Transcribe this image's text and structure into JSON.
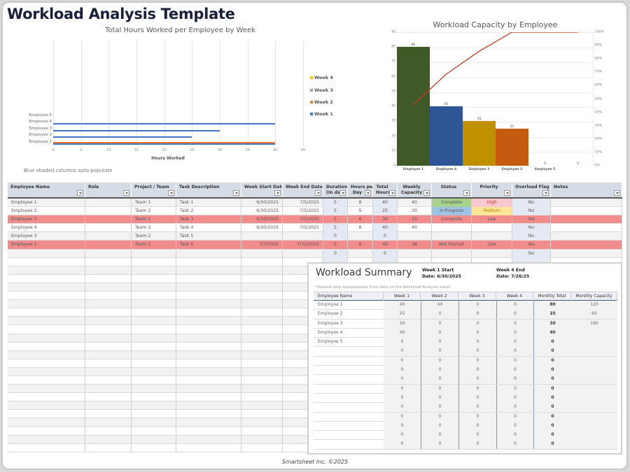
{
  "page": {
    "title": "Workload Analysis Template",
    "note": "Blue shaded columns auto-populate",
    "footer": "Smartsheet Inc. ©2025"
  },
  "colors": {
    "title": "#1a1f3a",
    "week1": "#4472c4",
    "week2": "#ed7d31",
    "week3": "#a5a5a5",
    "week4": "#ffc000",
    "overload_row": "#f28b8b",
    "status_complete": "#a9d18e",
    "status_in_progress": "#9dc3e6",
    "priority_high": "#f8c8cf",
    "priority_medium": "#ffe699",
    "shaded_column": "#e4e9f3"
  },
  "chart_data": [
    {
      "type": "bar",
      "orientation": "horizontal",
      "title": "Total Hours Worked per Employee by Week",
      "xlabel": "Hours Worked",
      "ylabel": "",
      "categories": [
        "Employee 1",
        "Employee 2",
        "Employee 3",
        "Employee 4",
        "Employee 5"
      ],
      "series": [
        {
          "name": "Week 1",
          "values": [
            40,
            25,
            30,
            40,
            0
          ]
        },
        {
          "name": "Week 2",
          "values": [
            40,
            0,
            0,
            0,
            0
          ]
        },
        {
          "name": "Week 3",
          "values": [
            0,
            0,
            0,
            0,
            0
          ]
        },
        {
          "name": "Week 4",
          "values": [
            0,
            0,
            0,
            0,
            0
          ]
        }
      ],
      "xlim": [
        0,
        45
      ],
      "xticks": [
        "0",
        "5",
        "10",
        "15",
        "20",
        "25",
        "30",
        "35",
        "40",
        "45"
      ],
      "legend": [
        "Week 4",
        "Week 3",
        "Week 2",
        "Week 1"
      ],
      "legend_position": "right",
      "grid": true
    },
    {
      "type": "bar",
      "subtype": "pareto",
      "title": "Workload Capacity by Employee",
      "categories": [
        "Employee 1",
        "Employee 4",
        "Employee 3",
        "Employee 2",
        "Employee 5",
        ""
      ],
      "series": [
        {
          "name": "Monthly Total",
          "type": "bar",
          "values": [
            80,
            40,
            30,
            25,
            0,
            0
          ],
          "colors": [
            "#3f5a27",
            "#2f5597",
            "#bf9000",
            "#c55a11",
            "#999999",
            "#999999"
          ]
        },
        {
          "name": "Cumulative %",
          "type": "line",
          "axis": "right",
          "values": [
            45.7,
            68.6,
            85.7,
            100,
            100,
            100
          ],
          "color": "#c0392b"
        }
      ],
      "ylim": [
        0,
        90
      ],
      "yticks": [
        "0",
        "10",
        "20",
        "30",
        "40",
        "50",
        "60",
        "70",
        "80",
        "90"
      ],
      "y2lim": [
        0,
        100
      ],
      "y2ticks": [
        "0%",
        "10%",
        "20%",
        "30%",
        "40%",
        "50%",
        "60%",
        "70%",
        "80%",
        "90%",
        "100%"
      ],
      "data_labels": [
        "80",
        "40",
        "30",
        "25",
        "0",
        "0"
      ],
      "grid": true
    }
  ],
  "table": {
    "headers": [
      {
        "label": "Employee Name"
      },
      {
        "label": "Role"
      },
      {
        "label": "Project / Team"
      },
      {
        "label": "Task Description"
      },
      {
        "label": "Week Start Date"
      },
      {
        "label": "Week End Date"
      },
      {
        "label": "Duration (In days)"
      },
      {
        "label": "Hours per Day"
      },
      {
        "label": "Total Hours"
      },
      {
        "label": "Weekly Capacity"
      },
      {
        "label": "Status"
      },
      {
        "label": "Priority"
      },
      {
        "label": "Overload Flag"
      },
      {
        "label": "Notes"
      }
    ],
    "header_display": [
      "Employee Name",
      "Role",
      "Project / Team",
      "Task Description",
      "Week Start Date",
      "Week End Date",
      "Duration\n(In days",
      "Hours per\nDay",
      "Total\nHours",
      "Weekly\nCapacity",
      "Status",
      "Priority",
      "Overload Flag",
      "Notes"
    ],
    "rows": [
      {
        "employee": "Employee 1",
        "role": "",
        "team": "Team 1",
        "task": "Task 1",
        "start": "6/30/2025",
        "end": "7/5/2025",
        "duration": "5",
        "hours_per_day": "8",
        "total": "40",
        "capacity": "40",
        "status": "Complete",
        "priority": "High",
        "overload": "No",
        "notes": ""
      },
      {
        "employee": "Employee 2",
        "role": "",
        "team": "Team 2",
        "task": "Task 2",
        "start": "6/30/2025",
        "end": "7/5/2025",
        "duration": "5",
        "hours_per_day": "5",
        "total": "25",
        "capacity": "30",
        "status": "In Progress",
        "priority": "Medium",
        "overload": "No",
        "notes": ""
      },
      {
        "employee": "Employee 3",
        "role": "",
        "team": "Team 1",
        "task": "Task 3",
        "start": "6/30/2025",
        "end": "7/5/2025",
        "duration": "5",
        "hours_per_day": "6",
        "total": "30",
        "capacity": "15",
        "status": "Complete",
        "priority": "Low",
        "overload": "Yes",
        "notes": ""
      },
      {
        "employee": "Employee 4",
        "role": "",
        "team": "Team 2",
        "task": "Task 4",
        "start": "6/30/2025",
        "end": "7/5/2025",
        "duration": "5",
        "hours_per_day": "8",
        "total": "40",
        "capacity": "40",
        "status": "",
        "priority": "",
        "overload": "No",
        "notes": ""
      },
      {
        "employee": "Employee 3",
        "role": "",
        "team": "Team 2",
        "task": "Task 5",
        "start": "",
        "end": "",
        "duration": "0",
        "hours_per_day": "",
        "total": "0",
        "capacity": "",
        "status": "",
        "priority": "",
        "overload": "No",
        "notes": ""
      },
      {
        "employee": "Employee 1",
        "role": "",
        "team": "Team 1",
        "task": "Task 6",
        "start": "7/7/2025",
        "end": "7/12/2025",
        "duration": "5",
        "hours_per_day": "8",
        "total": "40",
        "capacity": "38",
        "status": "Not Started",
        "priority": "Low",
        "overload": "Yes",
        "notes": ""
      },
      {
        "employee": "",
        "role": "",
        "team": "",
        "task": "",
        "start": "",
        "end": "",
        "duration": "0",
        "hours_per_day": "",
        "total": "0",
        "capacity": "",
        "status": "",
        "priority": "",
        "overload": "No",
        "notes": ""
      }
    ]
  },
  "summary": {
    "title": "Workload Summary",
    "week1_start_label": "Week 1 Start",
    "week1_start_value": "Date: 6/30/2025",
    "week4_end_label": "Week 4 End",
    "week4_end_value": "Date: 7/26/25",
    "note": "*Shaded cells autopopulate from data on the Workload Analysis sheet.",
    "headers": [
      "Employee Name",
      "Week 1",
      "Week 2",
      "Week 3",
      "Week 4",
      "Monthly Total",
      "Monthly Capacity"
    ],
    "rows": [
      [
        "Employee 1",
        "40",
        "40",
        "0",
        "0",
        "80",
        "120"
      ],
      [
        "Employee 2",
        "25",
        "0",
        "0",
        "0",
        "25",
        "60"
      ],
      [
        "Employee 3",
        "30",
        "0",
        "0",
        "0",
        "30",
        "160"
      ],
      [
        "Employee 4",
        "40",
        "0",
        "0",
        "0",
        "40",
        ""
      ],
      [
        "Employee 5",
        "0",
        "0",
        "0",
        "0",
        "0",
        ""
      ],
      [
        "",
        "0",
        "0",
        "0",
        "0",
        "0",
        ""
      ],
      [
        "",
        "0",
        "0",
        "0",
        "0",
        "0",
        ""
      ],
      [
        "",
        "0",
        "0",
        "0",
        "0",
        "0",
        ""
      ],
      [
        "",
        "0",
        "0",
        "0",
        "0",
        "0",
        ""
      ],
      [
        "",
        "0",
        "0",
        "0",
        "0",
        "0",
        ""
      ],
      [
        "",
        "0",
        "0",
        "0",
        "0",
        "0",
        ""
      ],
      [
        "",
        "0",
        "0",
        "0",
        "0",
        "0",
        ""
      ],
      [
        "",
        "0",
        "0",
        "0",
        "0",
        "0",
        ""
      ],
      [
        "",
        "0",
        "0",
        "0",
        "0",
        "0",
        ""
      ],
      [
        "",
        "0",
        "0",
        "0",
        "0",
        "0",
        ""
      ],
      [
        "",
        "0",
        "0",
        "0",
        "0",
        "0",
        ""
      ]
    ]
  }
}
